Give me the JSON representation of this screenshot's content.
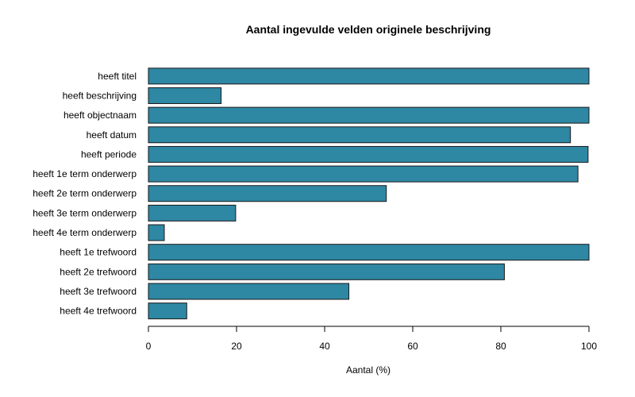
{
  "chart_data": {
    "type": "bar",
    "orientation": "horizontal",
    "title": "Aantal ingevulde velden originele beschrijving",
    "xlabel": "Aantal (%)",
    "ylabel": "",
    "xlim": [
      0,
      100
    ],
    "xticks": [
      0,
      20,
      40,
      60,
      80,
      100
    ],
    "grid": false,
    "bar_color": "#2e87a3",
    "categories": [
      "heeft titel",
      "heeft beschrijving",
      "heeft objectnaam",
      "heeft datum",
      "heeft periode",
      "heeft 1e term onderwerp",
      "heeft 2e term onderwerp",
      "heeft 3e term onderwerp",
      "heeft 4e term onderwerp",
      "heeft 1e trefwoord",
      "heeft 2e trefwoord",
      "heeft 3e trefwoord",
      "heeft 4e trefwoord"
    ],
    "values": [
      100,
      16.5,
      100,
      95.8,
      99.8,
      97.5,
      54,
      19.8,
      3.6,
      100,
      80.8,
      45.5,
      8.7
    ]
  }
}
